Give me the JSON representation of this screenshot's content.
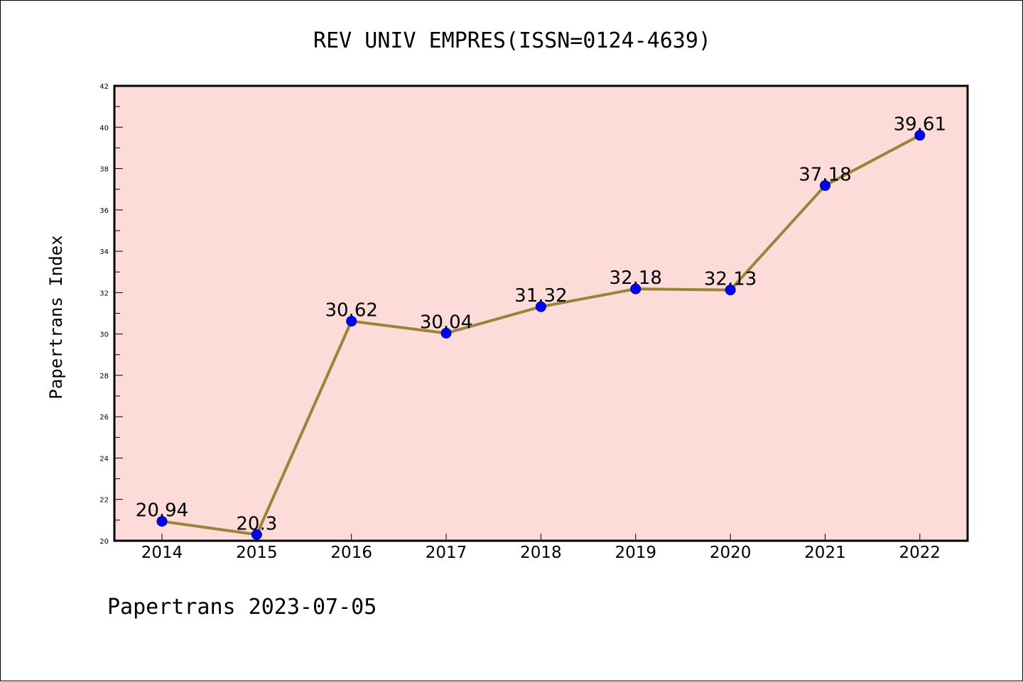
{
  "chart_data": {
    "type": "line",
    "title": "REV UNIV EMPRES(ISSN=0124-4639)",
    "xlabel": "",
    "ylabel": "Papertrans Index",
    "categories": [
      "2014",
      "2015",
      "2016",
      "2017",
      "2018",
      "2019",
      "2020",
      "2021",
      "2022"
    ],
    "series": [
      {
        "values": [
          20.94,
          20.3,
          30.62,
          30.04,
          31.32,
          32.18,
          32.13,
          37.18,
          39.61
        ],
        "data_labels": [
          "20.94",
          "20.3",
          "30.62",
          "30.04",
          "31.32",
          "32.18",
          "32.13",
          "37.18",
          "39.61"
        ]
      }
    ],
    "ylim": [
      20,
      42
    ],
    "yticks": [
      "20",
      "22",
      "24",
      "26",
      "28",
      "30",
      "32",
      "34",
      "36",
      "38",
      "40",
      "42"
    ],
    "grid": false,
    "legend": "none"
  },
  "footer": "Papertrans 2023-07-05",
  "colors": {
    "plot_background": "#fddbd9",
    "line": "#9a8439",
    "marker_fill": "#0000ff",
    "marker_stroke": "#00008b",
    "axis": "#000000"
  }
}
